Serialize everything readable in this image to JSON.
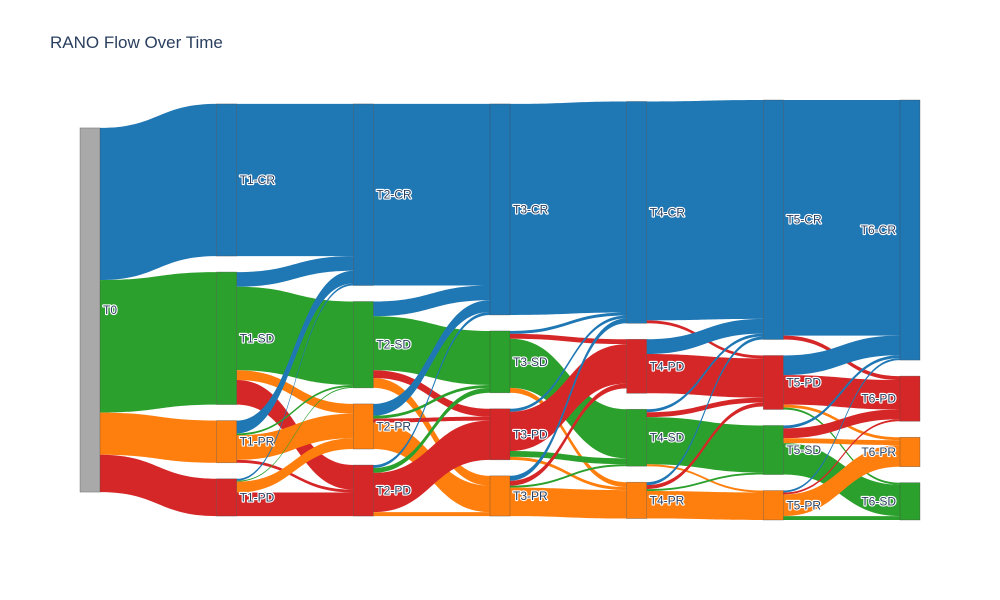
{
  "chart_data": {
    "type": "sankey",
    "title": "RANO Flow Over Time",
    "colors": {
      "CR": "#1f77b4",
      "SD": "#2ca02c",
      "PR": "#ff7f0e",
      "PD": "#d62728",
      "T0": "#a9a9a9"
    },
    "nodes": [
      {
        "id": "T0",
        "label": "T0",
        "stage": 0,
        "category": "T0"
      },
      {
        "id": "T1-CR",
        "label": "T1-CR",
        "stage": 1,
        "category": "CR"
      },
      {
        "id": "T1-SD",
        "label": "T1-SD",
        "stage": 1,
        "category": "SD"
      },
      {
        "id": "T1-PR",
        "label": "T1-PR",
        "stage": 1,
        "category": "PR"
      },
      {
        "id": "T1-PD",
        "label": "T1-PD",
        "stage": 1,
        "category": "PD"
      },
      {
        "id": "T2-CR",
        "label": "T2-CR",
        "stage": 2,
        "category": "CR"
      },
      {
        "id": "T2-SD",
        "label": "T2-SD",
        "stage": 2,
        "category": "SD"
      },
      {
        "id": "T2-PR",
        "label": "T2-PR",
        "stage": 2,
        "category": "PR"
      },
      {
        "id": "T2-PD",
        "label": "T2-PD",
        "stage": 2,
        "category": "PD"
      },
      {
        "id": "T3-CR",
        "label": "T3-CR",
        "stage": 3,
        "category": "CR"
      },
      {
        "id": "T3-SD",
        "label": "T3-SD",
        "stage": 3,
        "category": "SD"
      },
      {
        "id": "T3-PD",
        "label": "T3-PD",
        "stage": 3,
        "category": "PD"
      },
      {
        "id": "T3-PR",
        "label": "T3-PR",
        "stage": 3,
        "category": "PR"
      },
      {
        "id": "T4-CR",
        "label": "T4-CR",
        "stage": 4,
        "category": "CR"
      },
      {
        "id": "T4-PD",
        "label": "T4-PD",
        "stage": 4,
        "category": "PD"
      },
      {
        "id": "T4-SD",
        "label": "T4-SD",
        "stage": 4,
        "category": "SD"
      },
      {
        "id": "T4-PR",
        "label": "T4-PR",
        "stage": 4,
        "category": "PR"
      },
      {
        "id": "T5-CR",
        "label": "T5-CR",
        "stage": 5,
        "category": "CR"
      },
      {
        "id": "T5-PD",
        "label": "T5-PD",
        "stage": 5,
        "category": "PD"
      },
      {
        "id": "T5-SD",
        "label": "T5-SD",
        "stage": 5,
        "category": "SD"
      },
      {
        "id": "T5-PR",
        "label": "T5-PR",
        "stage": 5,
        "category": "PR"
      },
      {
        "id": "T6-CR",
        "label": "T6-CR",
        "stage": 6,
        "category": "CR"
      },
      {
        "id": "T6-PD",
        "label": "T6-PD",
        "stage": 6,
        "category": "PD"
      },
      {
        "id": "T6-PR",
        "label": "T6-PR",
        "stage": 6,
        "category": "PR"
      },
      {
        "id": "T6-SD",
        "label": "T6-SD",
        "stage": 6,
        "category": "SD"
      }
    ],
    "links": [
      {
        "source": "T0",
        "target": "T1-CR",
        "value": 155
      },
      {
        "source": "T0",
        "target": "T1-SD",
        "value": 135
      },
      {
        "source": "T0",
        "target": "T1-PR",
        "value": 43
      },
      {
        "source": "T0",
        "target": "T1-PD",
        "value": 38
      },
      {
        "source": "T1-CR",
        "target": "T2-CR",
        "value": 155
      },
      {
        "source": "T1-SD",
        "target": "T2-CR",
        "value": 15
      },
      {
        "source": "T1-SD",
        "target": "T2-SD",
        "value": 85
      },
      {
        "source": "T1-SD",
        "target": "T2-PR",
        "value": 10
      },
      {
        "source": "T1-SD",
        "target": "T2-PD",
        "value": 25
      },
      {
        "source": "T1-PR",
        "target": "T2-CR",
        "value": 13
      },
      {
        "source": "T1-PR",
        "target": "T2-SD",
        "value": 2
      },
      {
        "source": "T1-PR",
        "target": "T2-PR",
        "value": 25
      },
      {
        "source": "T1-PR",
        "target": "T2-PD",
        "value": 3
      },
      {
        "source": "T1-PD",
        "target": "T2-CR",
        "value": 2
      },
      {
        "source": "T1-PD",
        "target": "T2-SD",
        "value": 1
      },
      {
        "source": "T1-PD",
        "target": "T2-PR",
        "value": 11
      },
      {
        "source": "T1-PD",
        "target": "T2-PD",
        "value": 24
      },
      {
        "source": "T2-CR",
        "target": "T3-CR",
        "value": 185
      },
      {
        "source": "T2-SD",
        "target": "T3-CR",
        "value": 15
      },
      {
        "source": "T2-SD",
        "target": "T3-SD",
        "value": 55
      },
      {
        "source": "T2-SD",
        "target": "T3-PD",
        "value": 8
      },
      {
        "source": "T2-SD",
        "target": "T3-PR",
        "value": 10
      },
      {
        "source": "T2-PR",
        "target": "T3-CR",
        "value": 12
      },
      {
        "source": "T2-PR",
        "target": "T3-SD",
        "value": 3
      },
      {
        "source": "T2-PR",
        "target": "T3-PD",
        "value": 4
      },
      {
        "source": "T2-PR",
        "target": "T3-PR",
        "value": 27
      },
      {
        "source": "T2-PD",
        "target": "T3-CR",
        "value": 3
      },
      {
        "source": "T2-PD",
        "target": "T3-SD",
        "value": 5
      },
      {
        "source": "T2-PD",
        "target": "T3-PD",
        "value": 40
      },
      {
        "source": "T2-PD",
        "target": "T3-PR",
        "value": 4
      },
      {
        "source": "T3-CR",
        "target": "T4-CR",
        "value": 215
      },
      {
        "source": "T3-SD",
        "target": "T4-CR",
        "value": 3
      },
      {
        "source": "T3-SD",
        "target": "T4-PD",
        "value": 5
      },
      {
        "source": "T3-SD",
        "target": "T4-SD",
        "value": 50
      },
      {
        "source": "T3-SD",
        "target": "T4-PR",
        "value": 5
      },
      {
        "source": "T3-PD",
        "target": "T4-CR",
        "value": 3
      },
      {
        "source": "T3-PD",
        "target": "T4-PD",
        "value": 40
      },
      {
        "source": "T3-PD",
        "target": "T4-SD",
        "value": 6
      },
      {
        "source": "T3-PD",
        "target": "T4-PR",
        "value": 3
      },
      {
        "source": "T3-PR",
        "target": "T4-CR",
        "value": 5
      },
      {
        "source": "T3-PR",
        "target": "T4-PD",
        "value": 5
      },
      {
        "source": "T3-PR",
        "target": "T4-SD",
        "value": 2
      },
      {
        "source": "T3-PR",
        "target": "T4-PR",
        "value": 29
      },
      {
        "source": "T4-CR",
        "target": "T5-CR",
        "value": 223
      },
      {
        "source": "T4-CR",
        "target": "T5-PD",
        "value": 3
      },
      {
        "source": "T4-PD",
        "target": "T5-CR",
        "value": 15
      },
      {
        "source": "T4-PD",
        "target": "T5-PD",
        "value": 40
      },
      {
        "source": "T4-SD",
        "target": "T5-CR",
        "value": 3
      },
      {
        "source": "T4-SD",
        "target": "T5-PD",
        "value": 5
      },
      {
        "source": "T4-SD",
        "target": "T5-SD",
        "value": 48
      },
      {
        "source": "T4-SD",
        "target": "T5-PR",
        "value": 2
      },
      {
        "source": "T4-PR",
        "target": "T5-CR",
        "value": 3
      },
      {
        "source": "T4-PR",
        "target": "T5-PD",
        "value": 4
      },
      {
        "source": "T4-PR",
        "target": "T5-SD",
        "value": 2
      },
      {
        "source": "T4-PR",
        "target": "T5-PR",
        "value": 28
      },
      {
        "source": "T5-CR",
        "target": "T6-CR",
        "value": 240
      },
      {
        "source": "T5-CR",
        "target": "T6-PD",
        "value": 4
      },
      {
        "source": "T5-PD",
        "target": "T6-CR",
        "value": 20
      },
      {
        "source": "T5-PD",
        "target": "T6-PD",
        "value": 30
      },
      {
        "source": "T5-PD",
        "target": "T6-PR",
        "value": 3
      },
      {
        "source": "T5-PD",
        "target": "T6-SD",
        "value": 2
      },
      {
        "source": "T5-SD",
        "target": "T6-CR",
        "value": 3
      },
      {
        "source": "T5-SD",
        "target": "T6-PD",
        "value": 10
      },
      {
        "source": "T5-SD",
        "target": "T6-PR",
        "value": 5
      },
      {
        "source": "T5-SD",
        "target": "T6-SD",
        "value": 32
      },
      {
        "source": "T5-PR",
        "target": "T6-CR",
        "value": 2
      },
      {
        "source": "T5-PR",
        "target": "T6-PD",
        "value": 2
      },
      {
        "source": "T5-PR",
        "target": "T6-PR",
        "value": 22
      },
      {
        "source": "T5-PR",
        "target": "T6-SD",
        "value": 4
      }
    ]
  }
}
